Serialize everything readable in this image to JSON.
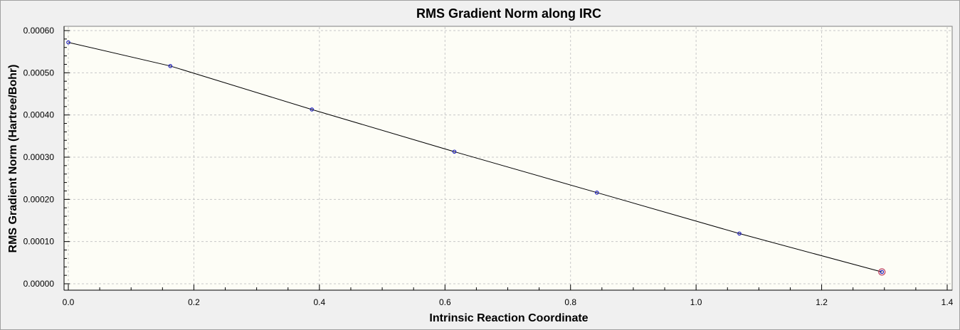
{
  "chart_data": {
    "type": "scatter",
    "title": "RMS Gradient Norm along IRC",
    "xlabel": "Intrinsic Reaction Coordinate",
    "ylabel": "RMS Gradient Norm (Hartree/Bohr)",
    "xlim": [
      0.0,
      1.4
    ],
    "ylim": [
      0.0,
      0.0006
    ],
    "x_ticks": [
      "0.0",
      "0.2",
      "0.4",
      "0.6",
      "0.8",
      "1.0",
      "1.2",
      "1.4"
    ],
    "y_ticks": [
      "0.00000",
      "0.00010",
      "0.00020",
      "0.00030",
      "0.00040",
      "0.00050",
      "0.00060"
    ],
    "grid": true,
    "series": [
      {
        "x": [
          0.0,
          0.1625,
          0.388,
          0.615,
          0.842,
          1.069,
          1.296
        ],
        "y": [
          0.000572,
          0.000516,
          0.000413,
          0.000313,
          0.000216,
          0.000119,
          2.8e-05
        ],
        "line_color": "#000000",
        "marker_color": "#2020c0"
      }
    ],
    "highlight_point": {
      "x": 1.296,
      "y": 2.8e-05,
      "color": "#c04060"
    },
    "plot_background": "#fdfdf6"
  }
}
